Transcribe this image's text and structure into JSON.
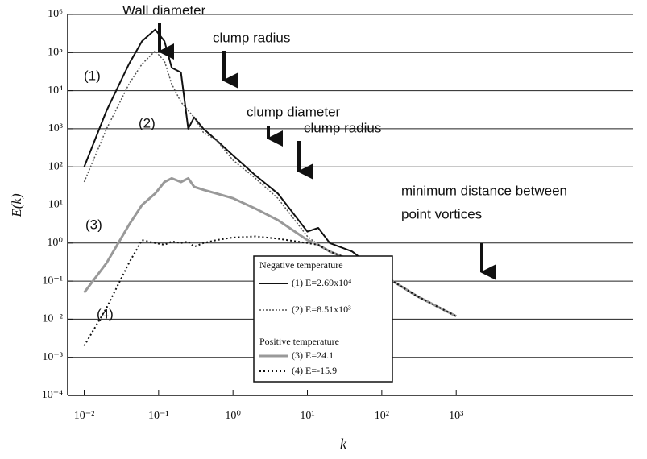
{
  "chart_data": {
    "type": "line",
    "x_label": "k",
    "y_label": "E(k)",
    "log_x": true,
    "log_y": true,
    "grid": "y",
    "x": [
      0.01,
      0.02,
      0.04,
      0.06,
      0.09,
      0.12,
      0.15,
      0.2,
      0.25,
      0.3,
      0.4,
      0.6,
      1,
      2,
      4,
      10,
      14,
      20,
      40,
      100,
      300,
      1000
    ],
    "series": [
      {
        "name": "(1) E=2.69x10⁴",
        "color": "#111111",
        "dash": "none",
        "width": 2,
        "values": [
          100,
          3000,
          50000,
          200000,
          400000,
          200000,
          40000,
          30000,
          1000,
          2000,
          1000,
          500,
          200,
          60,
          20,
          2,
          2.5,
          1,
          0.6,
          0.15,
          0.04,
          0.012
        ]
      },
      {
        "name": "(2) E=8.51x10³",
        "color": "#555555",
        "dash": "2 2",
        "width": 1.5,
        "values": [
          40,
          1000,
          15000,
          50000,
          110000,
          60000,
          15000,
          5000,
          3000,
          2000,
          800,
          500,
          150,
          50,
          15,
          1.5,
          0.9,
          0.6,
          0.35,
          0.15,
          0.04,
          0.012
        ]
      },
      {
        "name": "(3) E=24.1",
        "color": "#999999",
        "dash": "none",
        "width": 3,
        "values": [
          0.05,
          0.3,
          3,
          10,
          20,
          40,
          50,
          40,
          50,
          30,
          25,
          20,
          15,
          8,
          4,
          1.2,
          0.9,
          0.6,
          0.35,
          0.15,
          0.04,
          0.012
        ]
      },
      {
        "name": "(4) E=-15.9",
        "color": "#111111",
        "dash": "2 3",
        "width": 2,
        "values": [
          0.002,
          0.02,
          0.3,
          1.2,
          1,
          0.9,
          1.1,
          1,
          1.1,
          0.8,
          1,
          1.2,
          1.4,
          1.5,
          1.3,
          1,
          0.9,
          0.6,
          0.35,
          0.15,
          0.04,
          0.012
        ]
      }
    ],
    "legend_groups": [
      "Negative temperature",
      "Positive temperature"
    ],
    "curve_labels": [
      "(1)",
      "(2)",
      "(3)",
      "(4)"
    ],
    "annotations": [
      "Wall diameter",
      "clump radius",
      "clump diameter",
      "clump radius",
      "minimum distance between",
      "point vortices"
    ],
    "xlim": [
      0.006,
      240000
    ],
    "ylim": [
      0.0001,
      1000000
    ],
    "xticks": [
      {
        "value": 0.01,
        "label": "10⁻²"
      },
      {
        "value": 0.1,
        "label": "10⁻¹"
      },
      {
        "value": 1,
        "label": "10⁰"
      },
      {
        "value": 10,
        "label": "10¹"
      },
      {
        "value": 100,
        "label": "10²"
      },
      {
        "value": 1000,
        "label": "10³"
      }
    ],
    "yticks": [
      {
        "value": 0.0001,
        "label": "10⁻⁴"
      },
      {
        "value": 0.001,
        "label": "10⁻³"
      },
      {
        "value": 0.01,
        "label": "10⁻²"
      },
      {
        "value": 0.1,
        "label": "10⁻¹"
      },
      {
        "value": 1,
        "label": "10⁰"
      },
      {
        "value": 10,
        "label": "10¹"
      },
      {
        "value": 100,
        "label": "10²"
      },
      {
        "value": 1000,
        "label": "10³"
      },
      {
        "value": 10000,
        "label": "10⁴"
      },
      {
        "value": 100000,
        "label": "10⁵"
      },
      {
        "value": 1000000,
        "label": "10⁶"
      }
    ]
  }
}
